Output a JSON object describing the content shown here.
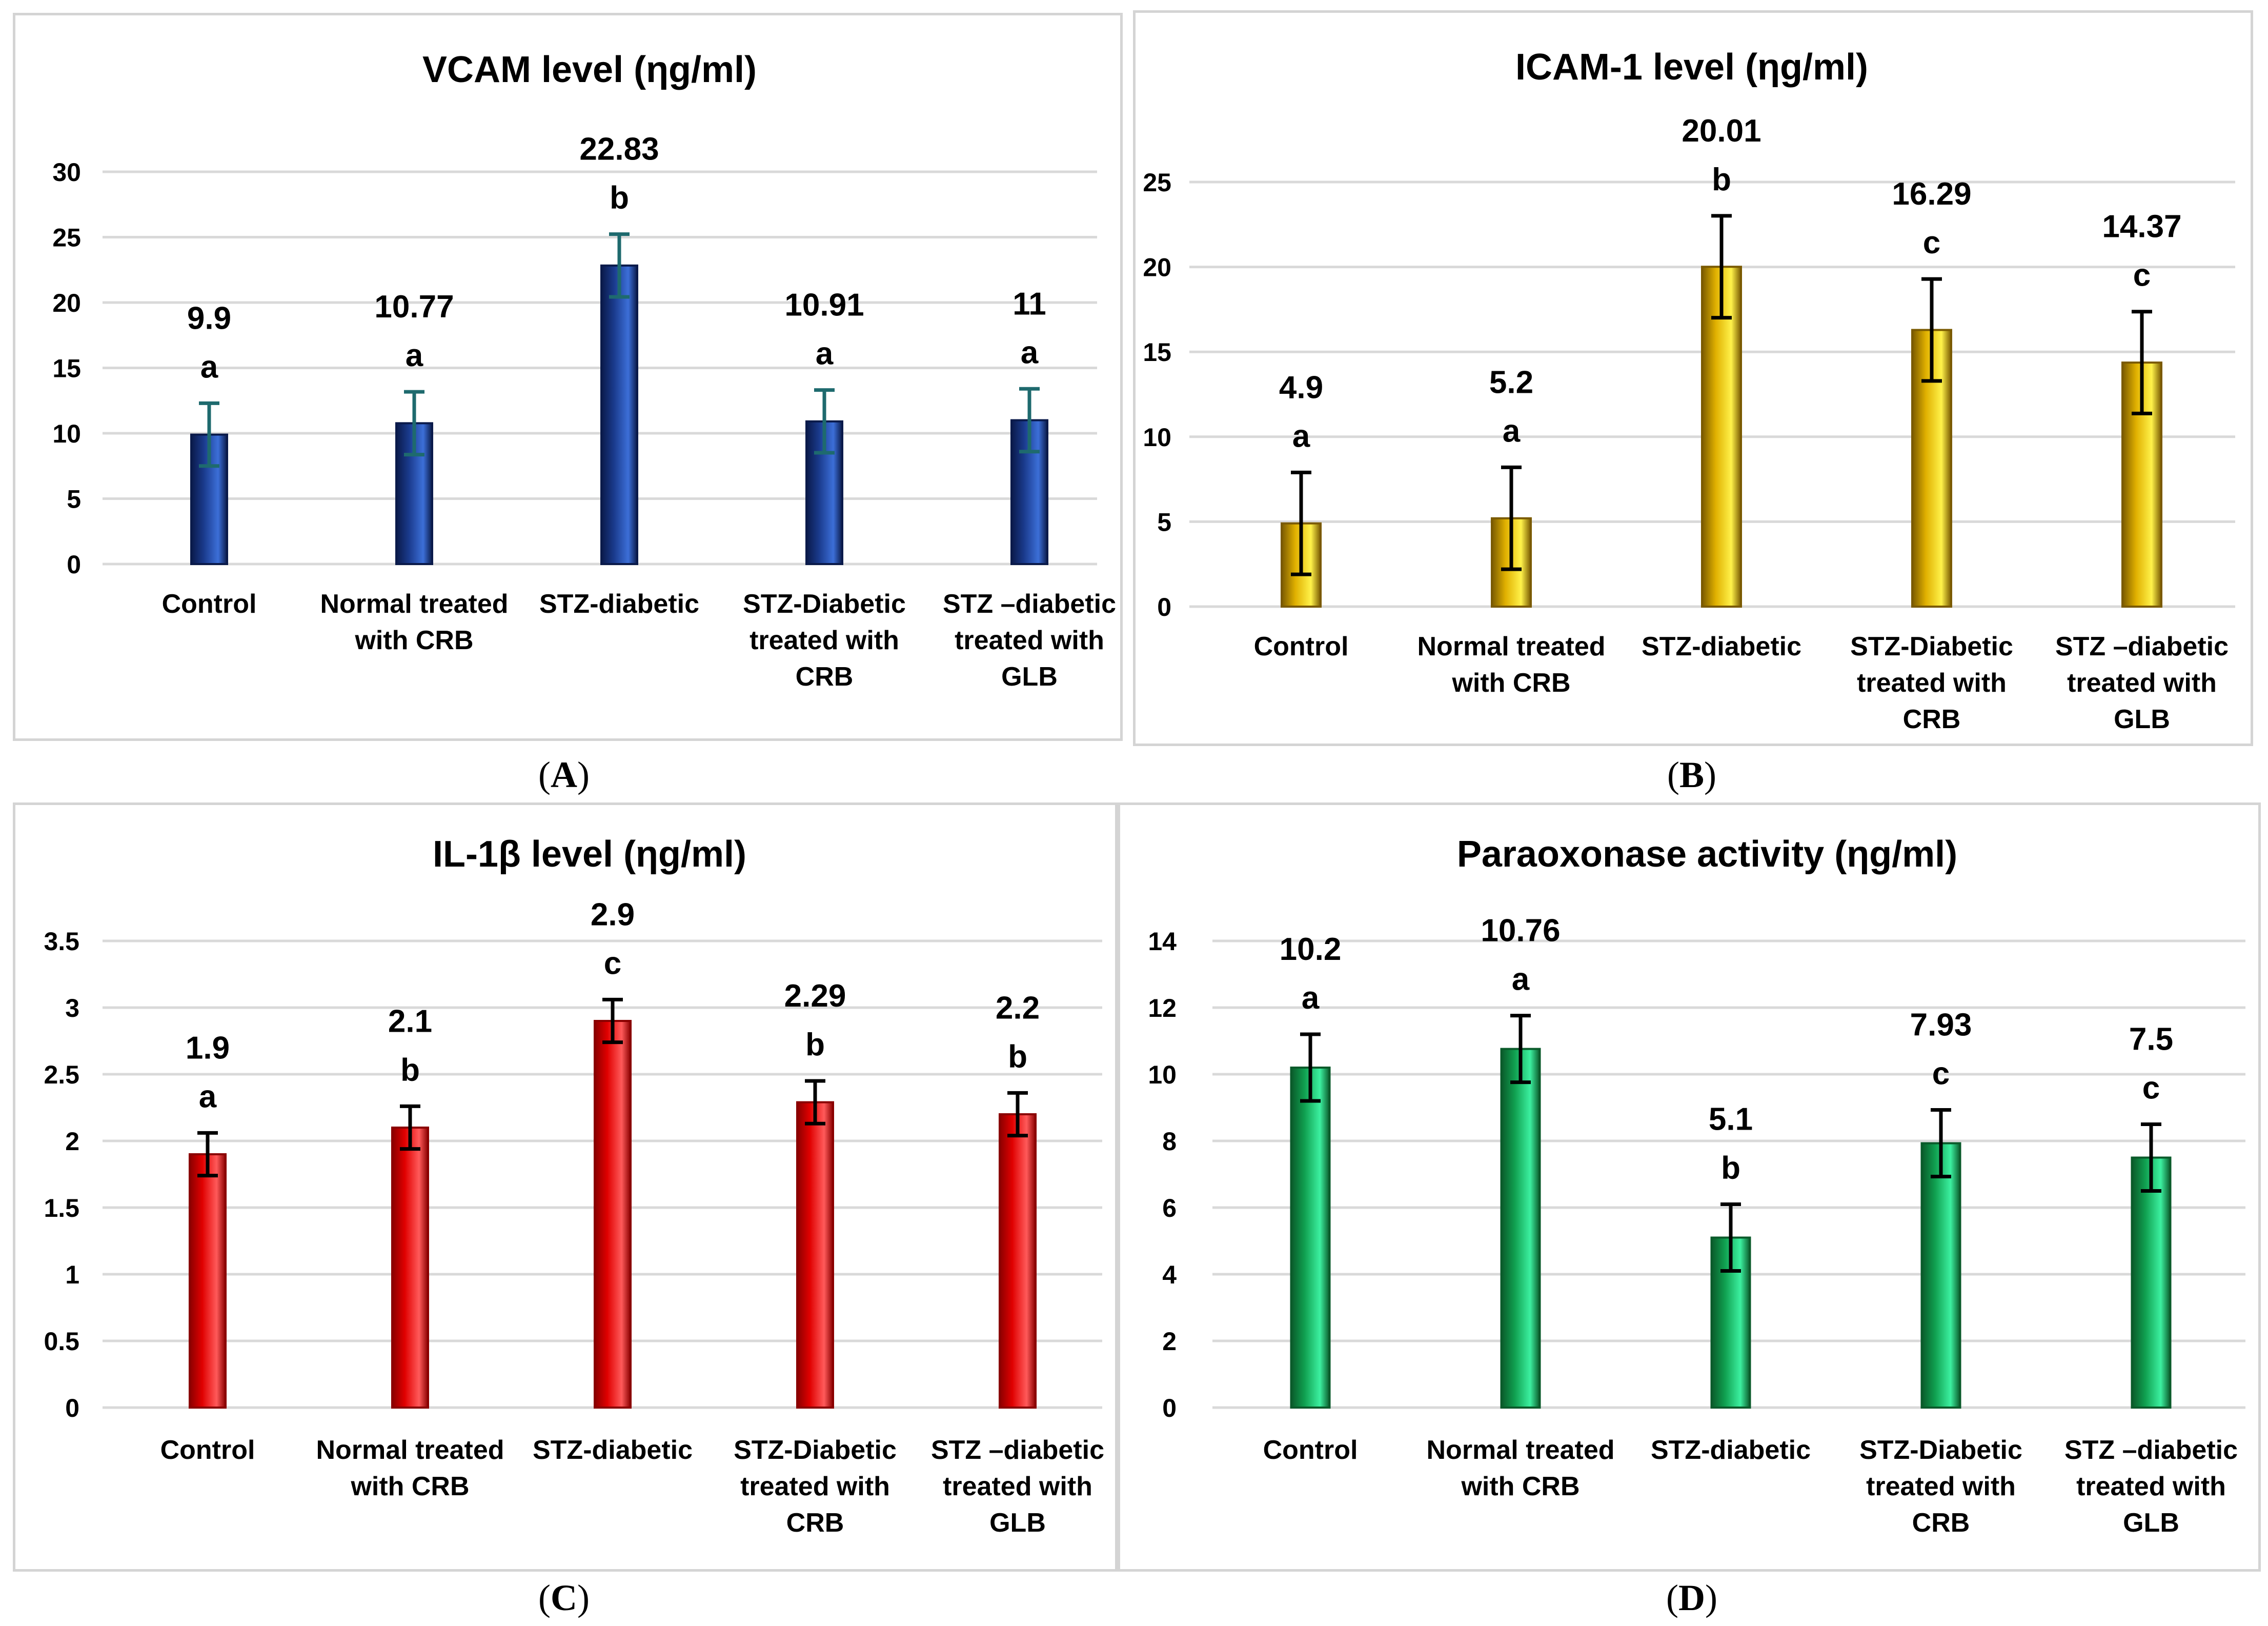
{
  "chart_data": [
    {
      "id": "A",
      "type": "bar",
      "title": "VCAM level (ηg/ml)",
      "panel_label": "A",
      "categories": [
        "Control",
        "Normal treated with CRB",
        "STZ-diabetic",
        "STZ-Diabetic treated with CRB",
        "STZ –diabetic treated with GLB"
      ],
      "category_lines": [
        [
          "Control"
        ],
        [
          "Normal treated",
          "with CRB"
        ],
        [
          "STZ-diabetic"
        ],
        [
          "STZ-Diabetic",
          "treated with",
          "CRB"
        ],
        [
          "STZ –diabetic",
          "treated with",
          "GLB"
        ]
      ],
      "values": [
        9.9,
        10.77,
        22.83,
        10.91,
        11
      ],
      "value_labels": [
        "9.9",
        "10.77",
        "22.83",
        "10.91",
        "11"
      ],
      "errors": [
        2.4,
        2.4,
        2.4,
        2.4,
        2.4
      ],
      "letters": [
        "a",
        "a",
        "b",
        "a",
        "a"
      ],
      "ylim": [
        0,
        30
      ],
      "yticks": [
        "0",
        "5",
        "10",
        "15",
        "20",
        "25",
        "30"
      ],
      "ytick_values": [
        0,
        5,
        10,
        15,
        20,
        25,
        30
      ],
      "grid": true,
      "xlabel": "",
      "ylabel": "",
      "colors": {
        "bar_dark": "#0a1a4a",
        "bar_mid": "#1a3a8c",
        "bar_light": "#3c6fd8",
        "error": "#1e6a6e"
      }
    },
    {
      "id": "B",
      "type": "bar",
      "title": "ICAM-1 level (ηg/ml)",
      "panel_label": "B",
      "categories": [
        "Control",
        "Normal treated with CRB",
        "STZ-diabetic",
        "STZ-Diabetic treated with CRB",
        "STZ –diabetic treated with GLB"
      ],
      "category_lines": [
        [
          "Control"
        ],
        [
          "Normal treated",
          "with CRB"
        ],
        [
          "STZ-diabetic"
        ],
        [
          "STZ-Diabetic",
          "treated with",
          "CRB"
        ],
        [
          "STZ –diabetic",
          "treated with",
          "GLB"
        ]
      ],
      "values": [
        4.9,
        5.2,
        20.01,
        16.29,
        14.37
      ],
      "value_labels": [
        "4.9",
        "5.2",
        "20.01",
        "16.29",
        "14.37"
      ],
      "errors": [
        3.0,
        3.0,
        3.0,
        3.0,
        3.0
      ],
      "letters": [
        "a",
        "a",
        "b",
        "c",
        "c"
      ],
      "ylim": [
        0,
        25
      ],
      "yticks": [
        "0",
        "5",
        "10",
        "15",
        "20",
        "25"
      ],
      "ytick_values": [
        0,
        5,
        10,
        15,
        20,
        25
      ],
      "grid": true,
      "xlabel": "",
      "ylabel": "",
      "colors": {
        "bar_dark": "#7a5a00",
        "bar_mid": "#e0b000",
        "bar_light": "#fff24a",
        "error": "#000000"
      }
    },
    {
      "id": "C",
      "type": "bar",
      "title": "IL-1β level (ηg/ml)",
      "panel_label": "C",
      "categories": [
        "Control",
        "Normal treated with CRB",
        "STZ-diabetic",
        "STZ-Diabetic treated with CRB",
        "STZ –diabetic treated with GLB"
      ],
      "category_lines": [
        [
          "Control"
        ],
        [
          "Normal treated",
          "with CRB"
        ],
        [
          "STZ-diabetic"
        ],
        [
          "STZ-Diabetic",
          "treated with",
          "CRB"
        ],
        [
          "STZ –diabetic",
          "treated with",
          "GLB"
        ]
      ],
      "values": [
        1.9,
        2.1,
        2.9,
        2.29,
        2.2
      ],
      "value_labels": [
        "1.9",
        "2.1",
        "2.9",
        "2.29",
        "2.2"
      ],
      "errors": [
        0.16,
        0.16,
        0.16,
        0.16,
        0.16
      ],
      "letters": [
        "a",
        "b",
        "c",
        "b",
        "b"
      ],
      "ylim": [
        0,
        3.5
      ],
      "yticks": [
        "0",
        "0.5",
        "1",
        "1.5",
        "2",
        "2.5",
        "3",
        "3.5"
      ],
      "ytick_values": [
        0,
        0.5,
        1,
        1.5,
        2,
        2.5,
        3,
        3.5
      ],
      "grid": true,
      "xlabel": "",
      "ylabel": "",
      "colors": {
        "bar_dark": "#8a0000",
        "bar_mid": "#e00000",
        "bar_light": "#ff5a5a",
        "error": "#000000"
      }
    },
    {
      "id": "D",
      "type": "bar",
      "title": "Paraoxonase activity (ηg/ml)",
      "panel_label": "D",
      "categories": [
        "Control",
        "Normal treated with CRB",
        "STZ-diabetic",
        "STZ-Diabetic treated with CRB",
        "STZ –diabetic treated with GLB"
      ],
      "category_lines": [
        [
          "Control"
        ],
        [
          "Normal treated",
          "with CRB"
        ],
        [
          "STZ-diabetic"
        ],
        [
          "STZ-Diabetic",
          "treated with",
          "CRB"
        ],
        [
          "STZ –diabetic",
          "treated with",
          "GLB"
        ]
      ],
      "values": [
        10.2,
        10.76,
        5.1,
        7.93,
        7.5
      ],
      "value_labels": [
        "10.2",
        "10.76",
        "5.1",
        "7.93",
        "7.5"
      ],
      "errors": [
        1.0,
        1.0,
        1.0,
        1.0,
        1.0
      ],
      "letters": [
        "a",
        "a",
        "b",
        "c",
        "c"
      ],
      "ylim": [
        0,
        14
      ],
      "yticks": [
        "0",
        "2",
        "4",
        "6",
        "8",
        "10",
        "12",
        "14"
      ],
      "ytick_values": [
        0,
        2,
        4,
        6,
        8,
        10,
        12,
        14
      ],
      "grid": true,
      "xlabel": "",
      "ylabel": "",
      "colors": {
        "bar_dark": "#0a5a2a",
        "bar_mid": "#10a050",
        "bar_light": "#3cf0a0",
        "error": "#000000"
      }
    }
  ]
}
